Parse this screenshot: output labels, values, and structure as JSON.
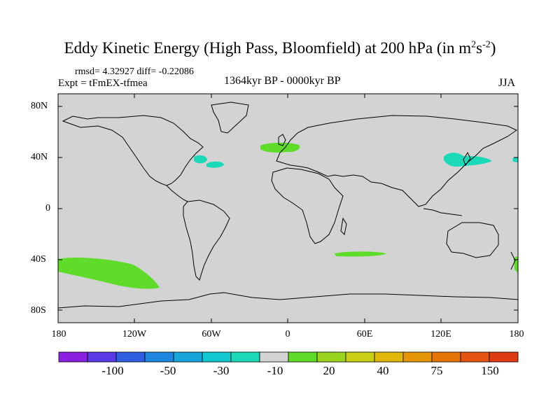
{
  "title": {
    "main": "Eddy Kinetic Energy (High Pass, Bloomfield) at 200 hPa (in m",
    "sup1": "2",
    "mid": "s",
    "sup2": "-2",
    "end": ")"
  },
  "stats": "rmsd= 4.32927 diff= -0.22086",
  "experiment": "Expt = tFmEX-tfmea",
  "period": "1364kyr BP - 0000kyr BP",
  "season": "JJA",
  "map": {
    "ocean_color": "#d3d3d3",
    "y_ticks": [
      "80N",
      "40N",
      "0",
      "40S",
      "80S"
    ],
    "x_ticks": [
      "180",
      "120W",
      "60W",
      "0",
      "60E",
      "120E",
      "180"
    ]
  },
  "colorbar": {
    "colors": [
      "#8a20e0",
      "#5a3ae6",
      "#2f5fe0",
      "#1f86e0",
      "#16a6dc",
      "#10c8d0",
      "#1ad9b8",
      "#d3d3d3",
      "#5fdc2a",
      "#9bd41e",
      "#c9cf12",
      "#e0b80a",
      "#e59608",
      "#e47406",
      "#e25410",
      "#e03a12"
    ],
    "labels": [
      "-100",
      "-50",
      "-30",
      "-10",
      "20",
      "40",
      "75",
      "150"
    ]
  }
}
